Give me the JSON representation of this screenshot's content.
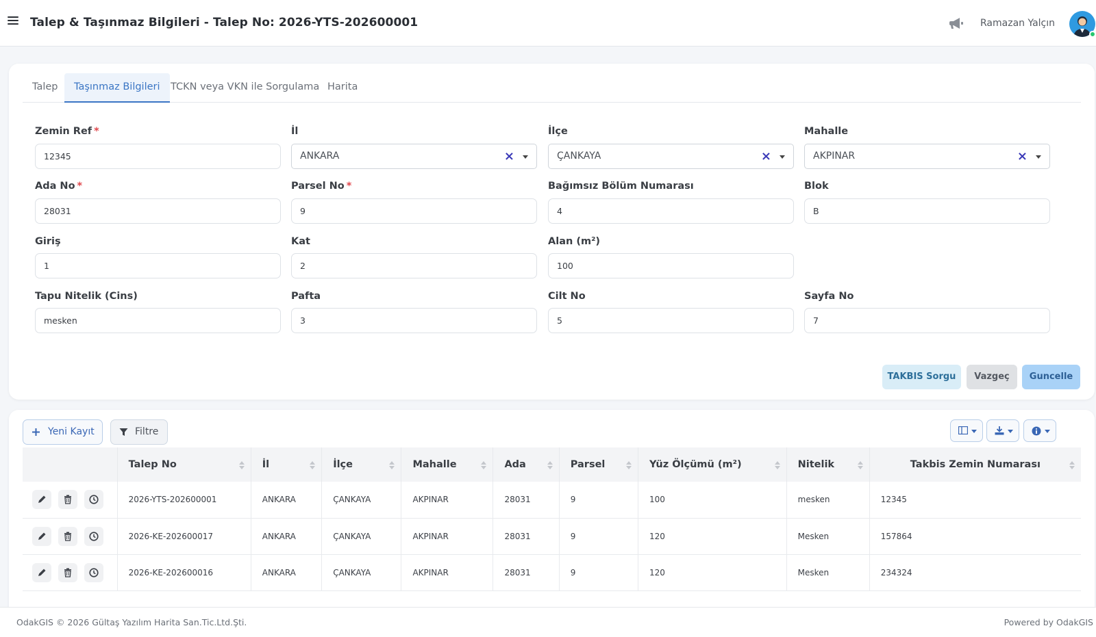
{
  "header": {
    "title": "Talep & Taşınmaz Bilgileri - Talep No: 2026-YTS-202600001",
    "user_name": "Ramazan Yalçın"
  },
  "tabs": [
    {
      "label": "Talep"
    },
    {
      "label": "Taşınmaz Bilgileri",
      "active": true
    },
    {
      "label": "TCKN veya VKN ile Sorgulama"
    },
    {
      "label": "Harita"
    }
  ],
  "form": {
    "zemin_ref": {
      "label": "Zemin Ref",
      "value": "12345"
    },
    "il": {
      "label": "İl",
      "value": "ANKARA"
    },
    "ilce": {
      "label": "İlçe",
      "value": "ÇANKAYA"
    },
    "mahalle": {
      "label": "Mahalle",
      "value": "AKPINAR"
    },
    "ada_no": {
      "label": "Ada No",
      "value": "28031"
    },
    "parsel_no": {
      "label": "Parsel No",
      "value": "9"
    },
    "bagimsiz_bolum": {
      "label": "Bağımsız Bölüm Numarası",
      "value": "4"
    },
    "blok": {
      "label": "Blok",
      "value": "B"
    },
    "giris": {
      "label": "Giriş",
      "value": "1"
    },
    "kat": {
      "label": "Kat",
      "value": "2"
    },
    "alan": {
      "label": "Alan (m²)",
      "value": "100"
    },
    "tapu_nitelik": {
      "label": "Tapu Nitelik (Cins)",
      "value": "mesken"
    },
    "pafta": {
      "label": "Pafta",
      "value": "3"
    },
    "cilt_no": {
      "label": "Cilt No",
      "value": "5"
    },
    "sayfa_no": {
      "label": "Sayfa No",
      "value": "7"
    },
    "required_mark": "*",
    "clear_icon": "×"
  },
  "actions": {
    "takbis": "TAKBIS Sorgu",
    "vazgec": "Vazgeç",
    "guncelle": "Guncelle"
  },
  "toolbar": {
    "new_record": "Yeni Kayıt",
    "filter": "Filtre"
  },
  "table": {
    "columns": [
      "Talep No",
      "İl",
      "İlçe",
      "Mahalle",
      "Ada",
      "Parsel",
      "Yüz Ölçümü (m²)",
      "Nitelik",
      "Takbis Zemin Numarası"
    ],
    "rows": [
      [
        "2026-YTS-202600001",
        "ANKARA",
        "ÇANKAYA",
        "AKPINAR",
        "28031",
        "9",
        "100",
        "mesken",
        "12345"
      ],
      [
        "2026-KE-202600017",
        "ANKARA",
        "ÇANKAYA",
        "AKPINAR",
        "28031",
        "9",
        "120",
        "Mesken",
        "157864"
      ],
      [
        "2026-KE-202600016",
        "ANKARA",
        "ÇANKAYA",
        "AKPINAR",
        "28031",
        "9",
        "120",
        "Mesken",
        "234324"
      ]
    ]
  },
  "footer": {
    "copyright": "OdakGIS © 2026 Gültaş Yazılım Harita San.Tic.Ltd.Şti.",
    "powered": "Powered by OdakGIS"
  },
  "colors": {
    "accent": "#3a75c4",
    "required": "#e0474c",
    "online": "#28c76f"
  },
  "icons": [
    "menu-icon",
    "megaphone-icon",
    "plus-icon",
    "filter-icon",
    "columns-icon",
    "download-icon",
    "info-icon",
    "pencil-icon",
    "trash-icon",
    "history-icon"
  ]
}
